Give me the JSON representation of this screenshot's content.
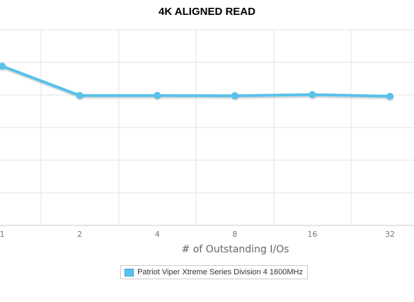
{
  "chart_data": {
    "type": "line",
    "title": "4K ALIGNED READ",
    "xlabel": "# of Outstanding I/Os",
    "ylabel": "",
    "categories": [
      "1",
      "2",
      "4",
      "8",
      "16",
      "32"
    ],
    "series": [
      {
        "name": "Patriot Viper Xtreme Series Division 4 1600MHz",
        "values": [
          87,
          76.5,
          76.5,
          76.4,
          76.8,
          76.2
        ]
      }
    ],
    "ylim": [
      30,
      100
    ],
    "grid": true,
    "legend": "bottom",
    "colors": {
      "series": "#58c2ea",
      "series_shadow": "#9a9a9a",
      "grid": "#e3e3e3",
      "axis": "#cccccc"
    }
  }
}
